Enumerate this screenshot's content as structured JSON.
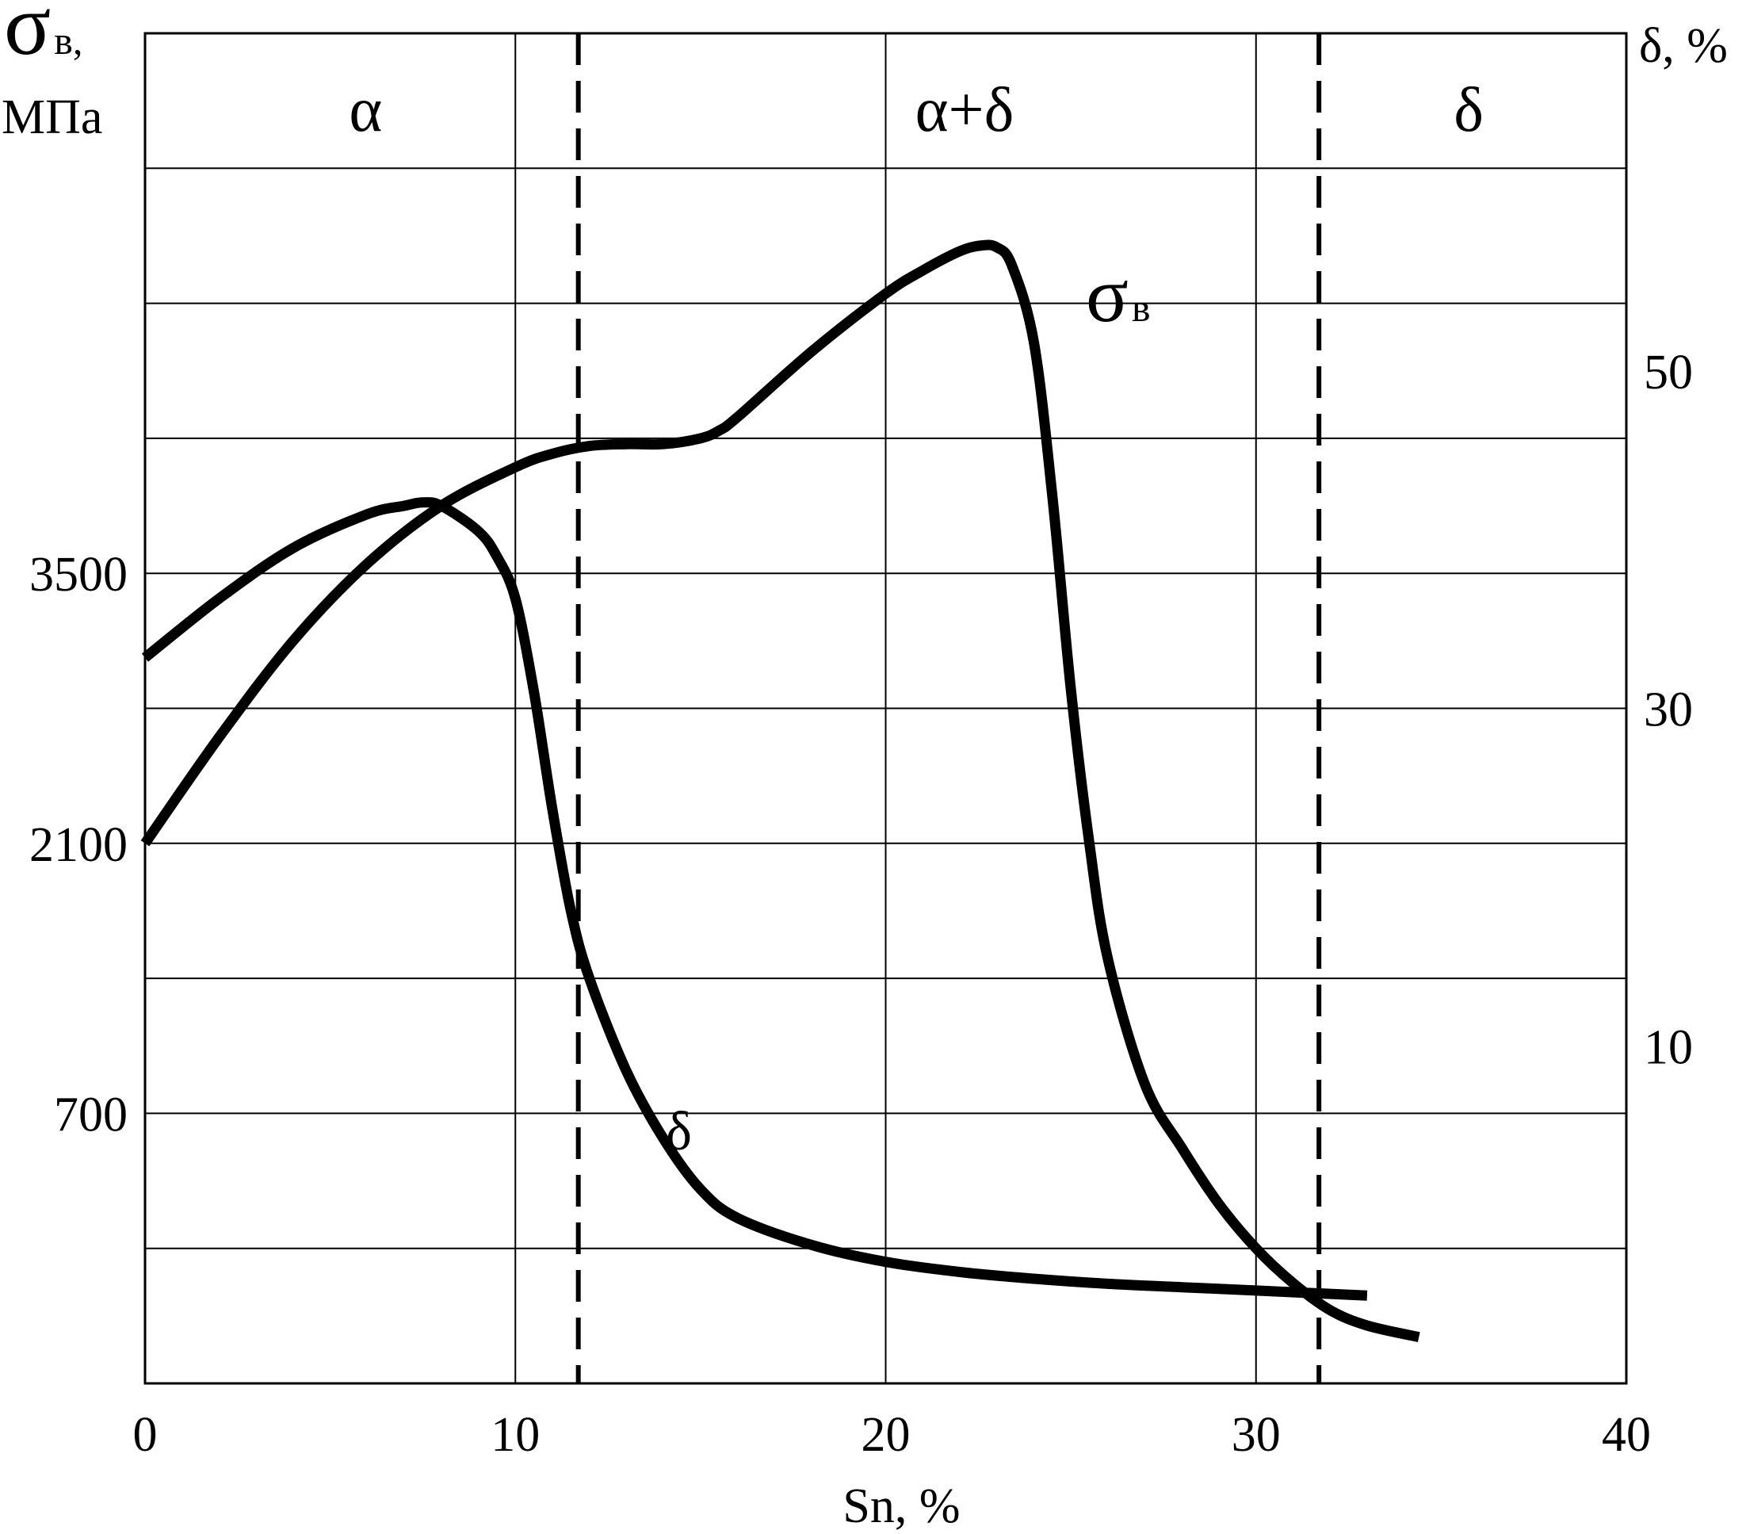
{
  "chart_data": {
    "type": "line",
    "xlabel": "Sn, %",
    "xlim": [
      0,
      40
    ],
    "x_ticks": [
      "0",
      "10",
      "20",
      "30",
      "40"
    ],
    "ylabel_left": {
      "symbol": "σ",
      "subscript": "в",
      "suffix": ",",
      "unit": "МПа"
    },
    "ylim_left": [
      -700,
      6300
    ],
    "y_ticks_left": [
      "3500",
      "2100",
      "700"
    ],
    "ylabel_right": "δ, %",
    "ylim_right": [
      -10,
      70
    ],
    "y_ticks_right": [
      "50",
      "30",
      "10"
    ],
    "grid": true,
    "phase_boundaries": [
      11.7,
      31.7
    ],
    "phase_labels": [
      "α",
      "α+δ",
      "δ"
    ],
    "series": [
      {
        "name": "σв",
        "label_symbol": "σ",
        "label_subscript": "в",
        "axis": "left",
        "x": [
          0,
          2,
          4,
          6,
          8,
          10,
          11,
          12,
          13,
          14,
          15,
          15.5,
          16,
          18,
          20,
          21,
          22,
          22.6,
          23,
          23.4,
          24,
          24.5,
          25,
          25.5,
          26,
          27,
          28,
          29,
          30,
          31,
          32,
          33,
          34.4
        ],
        "values": [
          2100,
          2650,
          3150,
          3550,
          3850,
          4050,
          4120,
          4160,
          4170,
          4170,
          4200,
          4240,
          4310,
          4650,
          4950,
          5070,
          5170,
          5200,
          5190,
          5100,
          4700,
          3900,
          2900,
          2100,
          1500,
          850,
          520,
          230,
          0,
          -180,
          -320,
          -400,
          -460
        ]
      },
      {
        "name": "δ",
        "label_symbol": "δ",
        "axis": "right",
        "x": [
          0,
          2,
          4,
          6,
          7,
          7.5,
          8,
          9,
          9.5,
          10,
          10.5,
          11,
          11.5,
          12,
          13,
          14,
          15,
          16,
          18,
          20,
          22,
          24,
          26,
          28,
          30,
          33
        ],
        "values": [
          33,
          36.5,
          39.5,
          41.5,
          42,
          42.2,
          42,
          40.5,
          39,
          36.5,
          31,
          24,
          18,
          14,
          8.5,
          4.5,
          1.5,
          -0.2,
          -1.8,
          -2.8,
          -3.4,
          -3.8,
          -4.1,
          -4.3,
          -4.5,
          -4.8
        ]
      }
    ]
  }
}
